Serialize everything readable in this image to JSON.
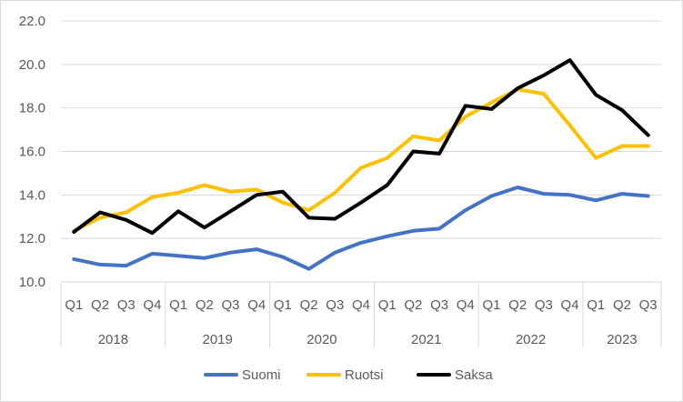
{
  "chart_data": {
    "type": "line",
    "title": "",
    "xlabel": "",
    "ylabel": "",
    "ylim": [
      10,
      22
    ],
    "yticks": [
      "10.0",
      "12.0",
      "14.0",
      "16.0",
      "18.0",
      "20.0",
      "22.0"
    ],
    "grid": true,
    "legend_position": "bottom",
    "quarters": [
      "Q1",
      "Q2",
      "Q3",
      "Q4",
      "Q1",
      "Q2",
      "Q3",
      "Q4",
      "Q1",
      "Q2",
      "Q3",
      "Q4",
      "Q1",
      "Q2",
      "Q3",
      "Q4",
      "Q1",
      "Q2",
      "Q3",
      "Q4",
      "Q1",
      "Q2",
      "Q3"
    ],
    "years": [
      {
        "label": "2018",
        "span": 4
      },
      {
        "label": "2019",
        "span": 4
      },
      {
        "label": "2020",
        "span": 4
      },
      {
        "label": "2021",
        "span": 4
      },
      {
        "label": "2022",
        "span": 4
      },
      {
        "label": "2023",
        "span": 3
      }
    ],
    "series": [
      {
        "name": "Suomi",
        "color": "#4472c4",
        "values": [
          11.05,
          10.8,
          10.75,
          11.3,
          11.2,
          11.1,
          11.35,
          11.5,
          11.15,
          10.6,
          11.35,
          11.8,
          12.1,
          12.35,
          12.45,
          13.3,
          13.95,
          14.35,
          14.05,
          14.0,
          13.75,
          14.05,
          13.95
        ]
      },
      {
        "name": "Ruotsi",
        "color": "#ffc000",
        "values": [
          12.35,
          12.95,
          13.2,
          13.9,
          14.1,
          14.45,
          14.15,
          14.25,
          13.65,
          13.3,
          14.1,
          15.25,
          15.7,
          16.7,
          16.5,
          17.6,
          18.25,
          18.85,
          18.65,
          17.2,
          15.7,
          16.25,
          16.25
        ]
      },
      {
        "name": "Saksa",
        "color": "#000000",
        "values": [
          12.3,
          13.2,
          12.85,
          12.25,
          13.25,
          12.5,
          13.25,
          14.0,
          14.15,
          12.95,
          12.9,
          13.65,
          14.45,
          16.0,
          15.9,
          18.1,
          17.95,
          18.9,
          19.5,
          20.2,
          18.6,
          17.9,
          16.75
        ]
      }
    ]
  }
}
